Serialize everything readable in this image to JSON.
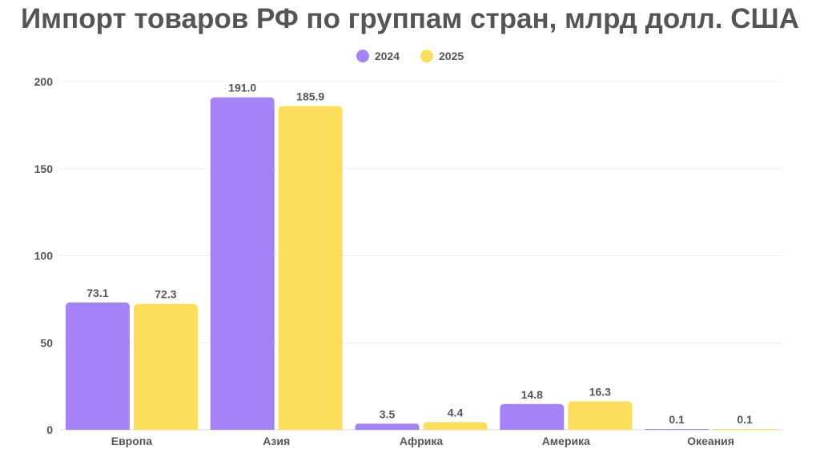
{
  "chart_data": {
    "type": "bar",
    "title": "Импорт товаров РФ по группам стран, млрд долл. США",
    "categories": [
      "Европа",
      "Азия",
      "Африка",
      "Америка",
      "Океания"
    ],
    "series": [
      {
        "name": "2024",
        "color": "#a682f7",
        "values": [
          73.1,
          191.0,
          3.5,
          14.8,
          0.1
        ],
        "labels": [
          "73.1",
          "191.0",
          "3.5",
          "14.8",
          "0.1"
        ]
      },
      {
        "name": "2025",
        "color": "#fdde5c",
        "values": [
          72.3,
          185.9,
          4.4,
          16.3,
          0.1
        ],
        "labels": [
          "72.3",
          "185.9",
          "4.4",
          "16.3",
          "0.1"
        ]
      }
    ],
    "yticks": [
      "0",
      "50",
      "100",
      "150",
      "200"
    ],
    "ylim": [
      0,
      200
    ],
    "legend_position": "top-center",
    "grid": true
  }
}
